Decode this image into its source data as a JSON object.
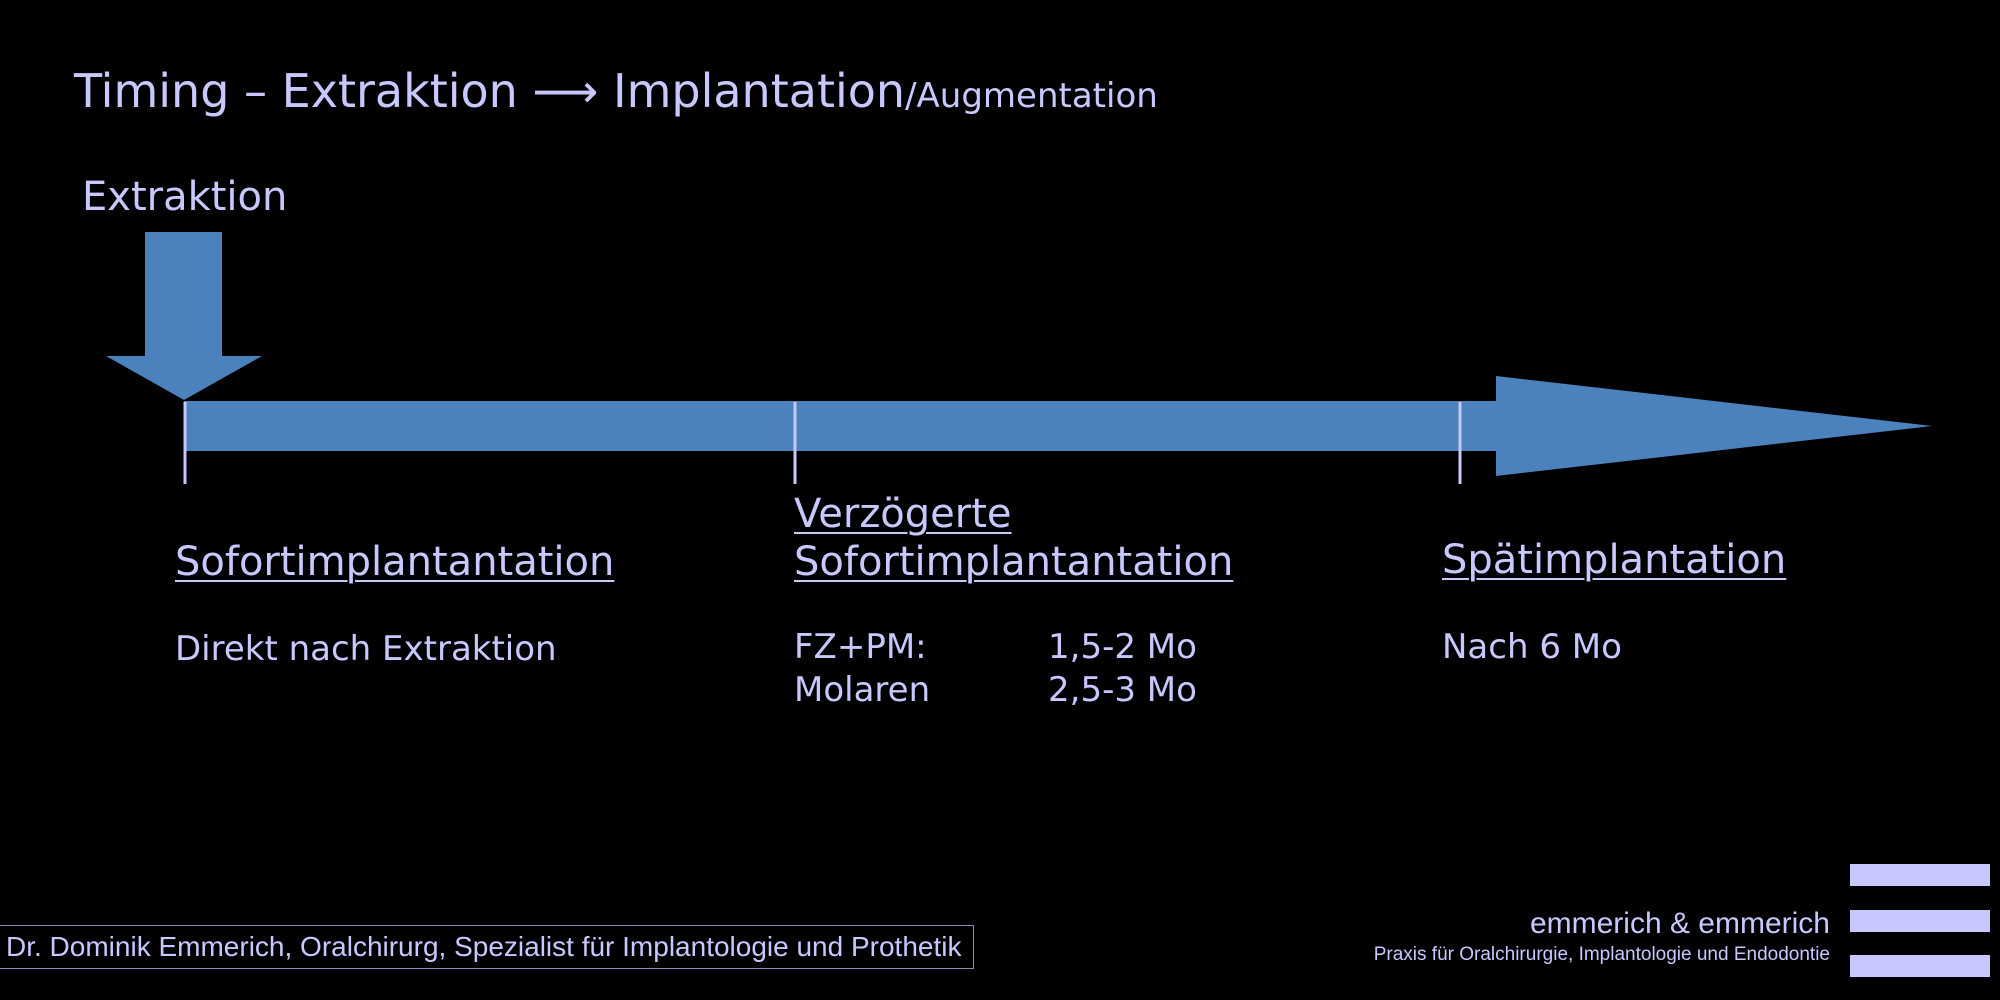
{
  "title": {
    "main": "Timing – Extraktion ⟶ Implantation",
    "suffix": "/Augmentation"
  },
  "extraction_marker": {
    "label": "Extraktion",
    "icon": "down-arrow-icon"
  },
  "timeline": {
    "color": "#4b82be",
    "tick_color": "#c8c8ff"
  },
  "phases": [
    {
      "heading_line1": "Sofortimplantantation",
      "text": "Direkt nach Extraktion"
    },
    {
      "heading_line1": "Verzögerte",
      "heading_line2": "Sofortimplantantation",
      "rows": [
        {
          "label": "FZ+PM:",
          "value": "1,5-2 Mo"
        },
        {
          "label": "Molaren",
          "value": "2,5-3 Mo"
        }
      ]
    },
    {
      "heading_line1": "Spätimplantation",
      "text": "Nach 6 Mo"
    }
  ],
  "footer": {
    "author": "Dr. Dominik Emmerich, Oralchirurg, Spezialist für Implantologie und Prothetik",
    "brand_name": "emmerich & emmerich",
    "brand_tagline": "Praxis für Oralchirurgie, Implantologie und Endodontie"
  },
  "colors": {
    "background": "#000000",
    "text": "#c8c8ff",
    "arrow": "#4b82be"
  }
}
